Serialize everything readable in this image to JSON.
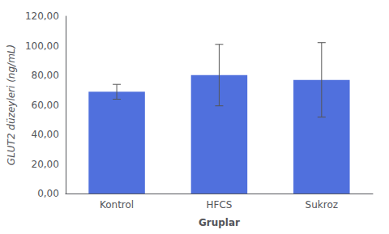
{
  "chart_data": {
    "type": "bar",
    "categories": [
      "Kontrol",
      "HFCS",
      "Sukroz"
    ],
    "values": [
      68.84,
      80.14,
      76.9
    ],
    "errors": [
      5.02,
      20.8,
      25.18
    ],
    "xlabel": "Gruplar",
    "ylabel": "GLUT2 düzeyleri (ng/mL)",
    "ylim": [
      0,
      120
    ],
    "yticks": [
      {
        "value": 0,
        "label": "0,00"
      },
      {
        "value": 20,
        "label": "20,00"
      },
      {
        "value": 40,
        "label": "40,00"
      },
      {
        "value": 60,
        "label": "60,00"
      },
      {
        "value": 80,
        "label": "80,00"
      },
      {
        "value": 100,
        "label": "100,00"
      },
      {
        "value": 120,
        "label": "120,00"
      }
    ],
    "grid": false
  }
}
